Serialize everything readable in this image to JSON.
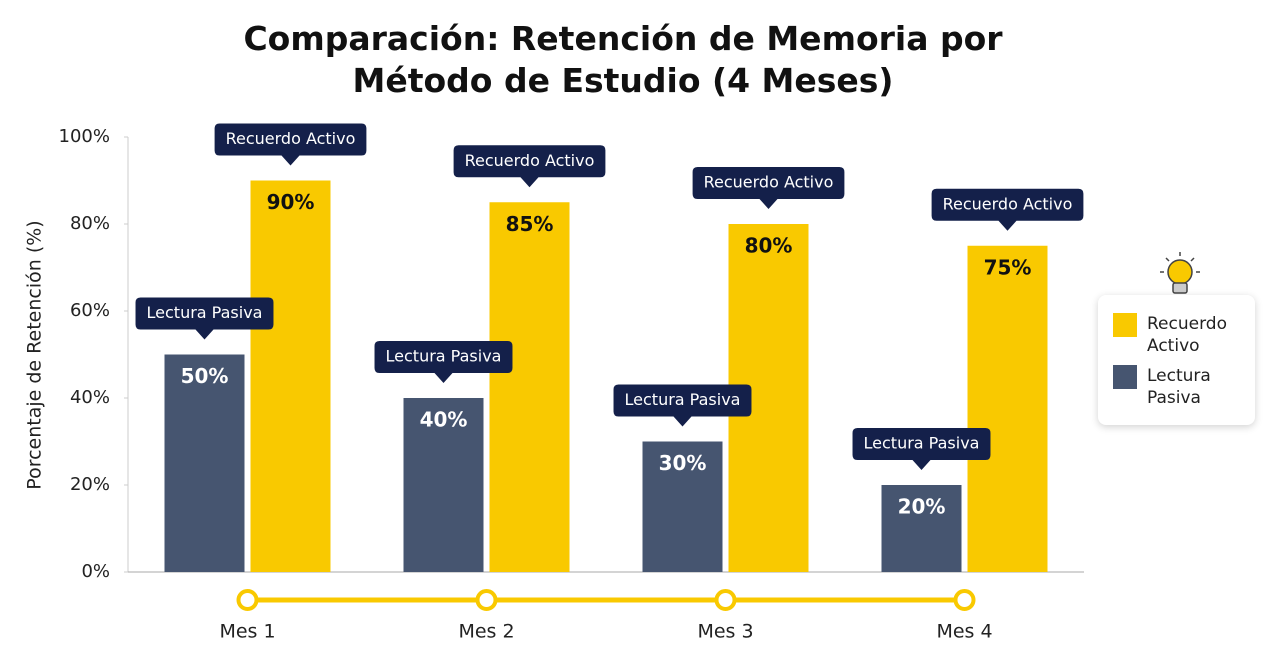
{
  "chart_data": {
    "type": "bar",
    "title": "Comparación: Retención de Memoria por Método de Estudio (4 Meses)",
    "y_label": "Porcentaje de Retención (%)",
    "categories": [
      "Mes 1",
      "Mes 2",
      "Mes 3",
      "Mes 4"
    ],
    "series": [
      {
        "name": "Recuerdo Activo",
        "color": "#f9c900",
        "values": [
          90,
          85,
          80,
          75
        ],
        "value_labels": [
          "90%",
          "85%",
          "80%",
          "75%"
        ]
      },
      {
        "name": "Lectura Pasiva",
        "color": "#465570",
        "values": [
          50,
          40,
          30,
          20
        ],
        "value_labels": [
          "50%",
          "40%",
          "30%",
          "20%"
        ]
      }
    ],
    "ylim": [
      0,
      100
    ],
    "yticks": [
      {
        "value": 0,
        "label": "0%"
      },
      {
        "value": 20,
        "label": "20%"
      },
      {
        "value": 40,
        "label": "40%"
      },
      {
        "value": 60,
        "label": "60%"
      },
      {
        "value": 80,
        "label": "80%"
      },
      {
        "value": 100,
        "label": "100%"
      }
    ],
    "legend": "right"
  }
}
